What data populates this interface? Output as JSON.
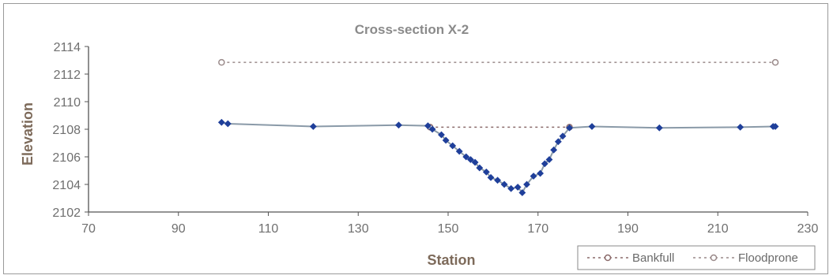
{
  "chart_data": {
    "type": "line",
    "title": "Cross-section X-2",
    "xlabel": "Station",
    "ylabel": "Elevation",
    "xlim": [
      70,
      230
    ],
    "ylim": [
      2102,
      2114
    ],
    "xticks": [
      70,
      90,
      110,
      130,
      150,
      170,
      190,
      210,
      230
    ],
    "yticks": [
      2102,
      2104,
      2106,
      2108,
      2110,
      2112,
      2114
    ],
    "grid": false,
    "legend_position": "bottom-right",
    "series": [
      {
        "color": "#1f3f9a",
        "line_color": "#8a9aa8",
        "marker": "diamond",
        "points": [
          [
            99.6,
            2108.5
          ],
          [
            101,
            2108.4
          ],
          [
            120,
            2108.2
          ],
          [
            139,
            2108.3
          ],
          [
            145.5,
            2108.25
          ],
          [
            146.5,
            2108.0
          ],
          [
            148.5,
            2107.6
          ],
          [
            149.5,
            2107.2
          ],
          [
            151,
            2106.8
          ],
          [
            152.5,
            2106.4
          ],
          [
            154,
            2106.0
          ],
          [
            155,
            2105.8
          ],
          [
            156,
            2105.6
          ],
          [
            157,
            2105.2
          ],
          [
            158.5,
            2104.9
          ],
          [
            159.5,
            2104.5
          ],
          [
            161,
            2104.3
          ],
          [
            162.5,
            2104.0
          ],
          [
            164,
            2103.7
          ],
          [
            165.5,
            2103.8
          ],
          [
            166.5,
            2103.4
          ],
          [
            167.5,
            2104.0
          ],
          [
            169,
            2104.6
          ],
          [
            170.5,
            2104.8
          ],
          [
            171.5,
            2105.5
          ],
          [
            172.5,
            2105.8
          ],
          [
            173.5,
            2106.5
          ],
          [
            174.5,
            2107.1
          ],
          [
            175.5,
            2107.5
          ],
          [
            177,
            2108.1
          ],
          [
            182,
            2108.2
          ],
          [
            197,
            2108.1
          ],
          [
            215,
            2108.15
          ],
          [
            222.3,
            2108.2
          ],
          [
            222.8,
            2108.2
          ]
        ]
      },
      {
        "name": "Bankfull",
        "color": "#8a6a6a",
        "dash": "dotted",
        "marker": "open-circle",
        "points": [
          [
            146,
            2108.15
          ],
          [
            177,
            2108.15
          ]
        ]
      },
      {
        "name": "Floodprone",
        "color": "#9a8a8a",
        "dash": "dotted",
        "marker": "open-circle",
        "points": [
          [
            99.6,
            2112.85
          ],
          [
            222.8,
            2112.85
          ]
        ]
      }
    ]
  }
}
